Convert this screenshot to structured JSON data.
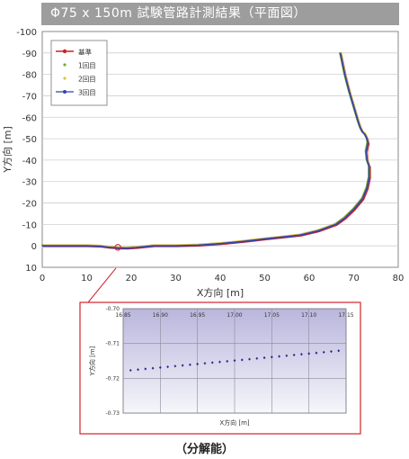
{
  "title": "Φ75 x 150m 試験管路計測結果（平面図）",
  "caption": "（分解能）",
  "chart_data": [
    {
      "type": "line",
      "xlabel": "X方向 [m]",
      "ylabel": "Y方向 [m]",
      "xlim": [
        0,
        80
      ],
      "ylim": [
        10,
        -100
      ],
      "x_ticks": [
        "0",
        "10",
        "20",
        "30",
        "40",
        "50",
        "60",
        "70",
        "80"
      ],
      "y_ticks": [
        "-100",
        "-90",
        "-80",
        "-70",
        "-60",
        "-50",
        "-40",
        "-30",
        "-20",
        "-10",
        "0",
        "10"
      ],
      "grid": "horizontal",
      "legend_position": "top-left",
      "series": [
        {
          "name": "基準",
          "color": "#cc2222",
          "marker": "circle"
        },
        {
          "name": "1回目",
          "color": "#77aa33",
          "marker": "dot"
        },
        {
          "name": "2回目",
          "color": "#e0c040",
          "marker": "dot"
        },
        {
          "name": "3回目",
          "color": "#3344aa",
          "marker": "diamond"
        }
      ],
      "path": {
        "x": [
          0,
          5,
          10,
          13,
          15,
          17,
          19,
          21,
          23,
          25,
          30,
          35,
          40,
          45,
          50,
          55,
          58,
          60,
          62,
          64,
          66,
          67,
          68,
          70,
          72,
          73,
          73.5,
          73.5,
          73,
          72.8,
          73,
          73.2,
          73,
          72.5,
          72,
          71.5,
          71,
          70,
          69,
          68,
          67
        ],
        "y": [
          0,
          0,
          0,
          0.2,
          0.7,
          1,
          1.1,
          0.8,
          0.4,
          0,
          0,
          -0.3,
          -1,
          -2,
          -3.2,
          -4.3,
          -5,
          -6,
          -7,
          -8.5,
          -10,
          -11.5,
          -13,
          -17,
          -22,
          -27,
          -32,
          -37,
          -40,
          -44,
          -46,
          -48,
          -50,
          -52,
          -53,
          -55,
          -58,
          -65,
          -72,
          -80,
          -90
        ]
      },
      "marker_x": 17,
      "marker_y": 0.7
    },
    {
      "type": "scatter",
      "xlabel": "X方向 [m]",
      "ylabel": "Y方向 [m]",
      "xlim": [
        16.85,
        17.15
      ],
      "ylim": [
        -0.7,
        -0.73
      ],
      "x_ticks": [
        "16.85",
        "16.90",
        "16.95",
        "17.00",
        "17.05",
        "17.10",
        "17.15"
      ],
      "y_ticks": [
        "-0.70",
        "-0.71",
        "-0.72",
        "-0.73"
      ],
      "grid": "both",
      "points": {
        "x": [
          16.86,
          16.87,
          16.88,
          16.89,
          16.9,
          16.91,
          16.92,
          16.93,
          16.94,
          16.95,
          16.96,
          16.97,
          16.98,
          16.99,
          17.0,
          17.01,
          17.02,
          17.03,
          17.04,
          17.05,
          17.06,
          17.07,
          17.08,
          17.09,
          17.1,
          17.11,
          17.12,
          17.13,
          17.14
        ],
        "y": [
          -0.7177,
          -0.7175,
          -0.7173,
          -0.7171,
          -0.7169,
          -0.7167,
          -0.7165,
          -0.7163,
          -0.7161,
          -0.7159,
          -0.7157,
          -0.7155,
          -0.7153,
          -0.7151,
          -0.7149,
          -0.7147,
          -0.7145,
          -0.7143,
          -0.7141,
          -0.7139,
          -0.7137,
          -0.7135,
          -0.7133,
          -0.7131,
          -0.7129,
          -0.7127,
          -0.7125,
          -0.7123,
          -0.7121
        ]
      }
    }
  ]
}
